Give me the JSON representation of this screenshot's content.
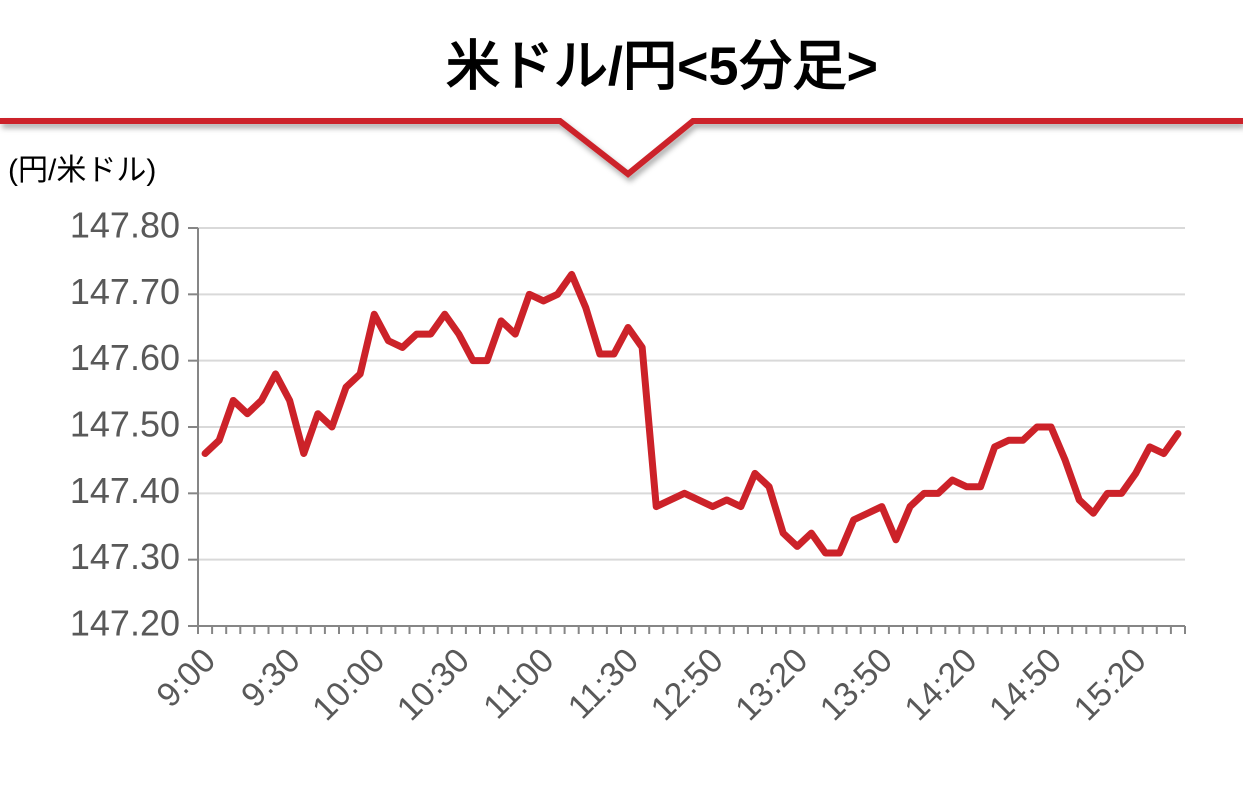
{
  "chart_data": {
    "type": "line",
    "title": "米ドル/円<5分足>",
    "y_axis_label": "(円/米ドル)",
    "categories": [
      "9:00",
      null,
      null,
      null,
      null,
      null,
      "9:30",
      null,
      null,
      null,
      null,
      null,
      "10:00",
      null,
      null,
      null,
      null,
      null,
      "10:30",
      null,
      null,
      null,
      null,
      null,
      "11:00",
      null,
      null,
      null,
      null,
      null,
      "11:30",
      null,
      null,
      null,
      null,
      null,
      "12:50",
      null,
      null,
      null,
      null,
      null,
      "13:20",
      null,
      null,
      null,
      null,
      null,
      "13:50",
      null,
      null,
      null,
      null,
      null,
      "14:20",
      null,
      null,
      null,
      null,
      null,
      "14:50",
      null,
      null,
      null,
      null,
      null,
      "15:20",
      null,
      null,
      null
    ],
    "series": [
      {
        "color": "#cc2229",
        "values": [
          147.46,
          147.48,
          147.54,
          147.52,
          147.54,
          147.58,
          147.54,
          147.46,
          147.52,
          147.5,
          147.56,
          147.58,
          147.67,
          147.63,
          147.62,
          147.64,
          147.64,
          147.67,
          147.64,
          147.6,
          147.6,
          147.66,
          147.64,
          147.7,
          147.69,
          147.7,
          147.73,
          147.68,
          147.61,
          147.61,
          147.65,
          147.62,
          147.38,
          147.39,
          147.4,
          147.39,
          147.38,
          147.39,
          147.38,
          147.43,
          147.41,
          147.34,
          147.32,
          147.34,
          147.31,
          147.31,
          147.36,
          147.37,
          147.38,
          147.33,
          147.38,
          147.4,
          147.4,
          147.42,
          147.41,
          147.41,
          147.47,
          147.48,
          147.48,
          147.5,
          147.5,
          147.45,
          147.39,
          147.37,
          147.4,
          147.4,
          147.43,
          147.47,
          147.46,
          147.49
        ]
      }
    ],
    "ylim": [
      147.2,
      147.8
    ],
    "yticks": [
      {
        "value": 147.2,
        "label": "147.20"
      },
      {
        "value": 147.3,
        "label": "147.30"
      },
      {
        "value": 147.4,
        "label": "147.40"
      },
      {
        "value": 147.5,
        "label": "147.50"
      },
      {
        "value": 147.6,
        "label": "147.60"
      },
      {
        "value": 147.7,
        "label": "147.70"
      },
      {
        "value": 147.8,
        "label": "147.80"
      }
    ],
    "grid": true
  }
}
